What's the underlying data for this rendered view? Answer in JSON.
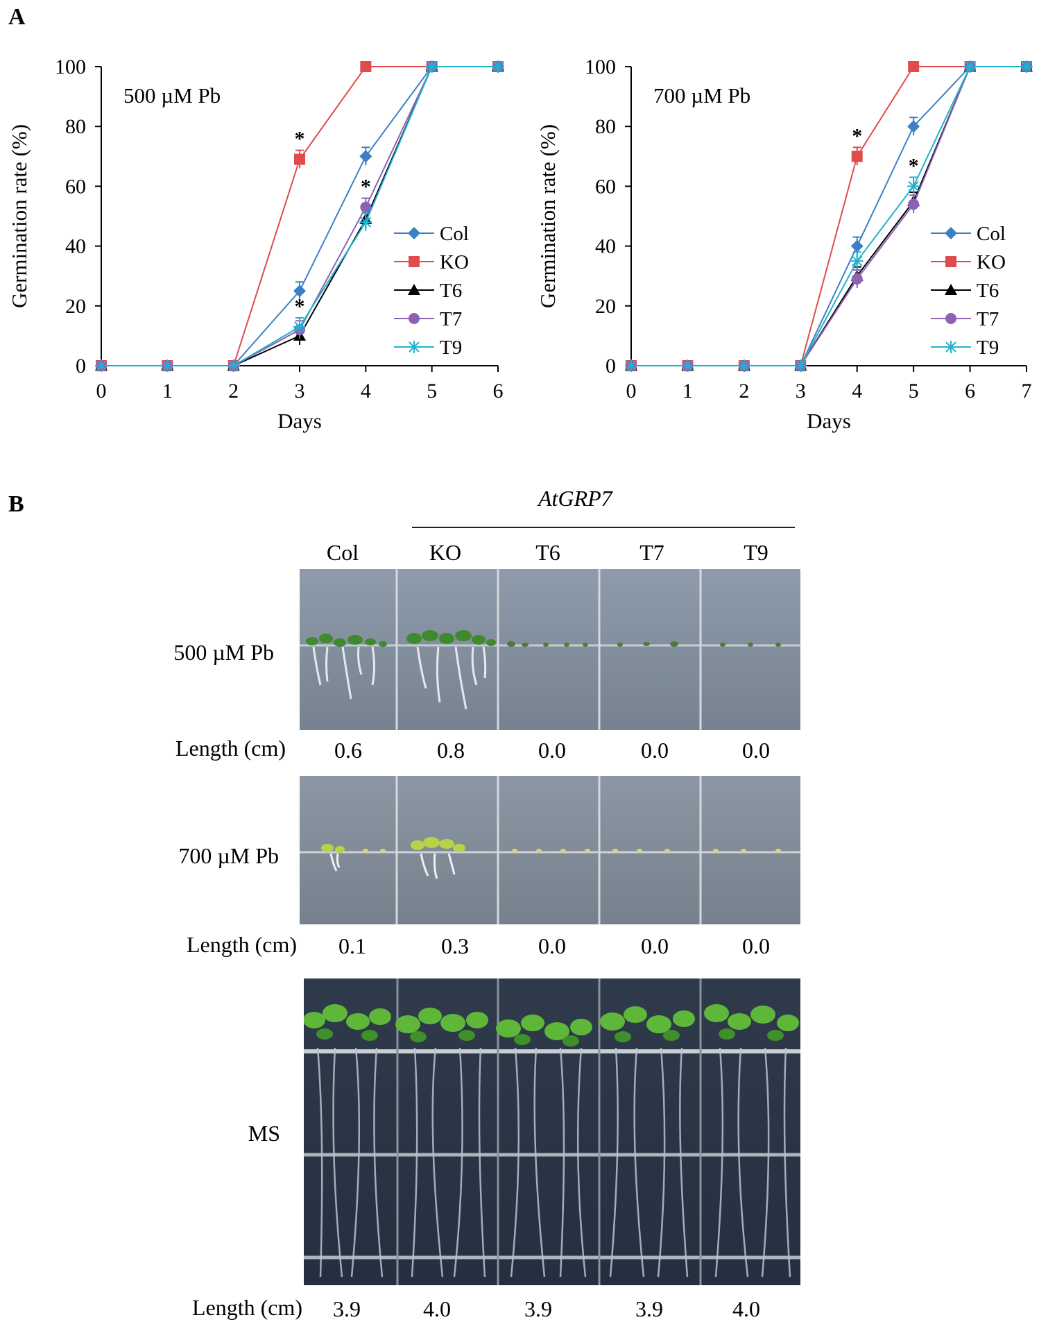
{
  "panelA": {
    "letter": "A"
  },
  "panelB": {
    "letter": "B",
    "gene_label": "AtGRP7",
    "columns": [
      "Col",
      "KO",
      "T6",
      "T7",
      "T9"
    ],
    "rows": [
      {
        "condition": "500 µM Pb",
        "length_label": "Length (cm)",
        "lengths": [
          "0.6",
          "0.8",
          "0.0",
          "0.0",
          "0.0"
        ]
      },
      {
        "condition": "700 µM Pb",
        "length_label": "Length (cm)",
        "lengths": [
          "0.1",
          "0.3",
          "0.0",
          "0.0",
          "0.0"
        ]
      },
      {
        "condition": "MS",
        "length_label": "Length (cm)",
        "lengths": [
          "3.9",
          "4.0",
          "3.9",
          "3.9",
          "4.0"
        ]
      }
    ]
  },
  "colors": {
    "Col": "#3d7fc4",
    "KO": "#e04b4b",
    "T6": "#000000",
    "T7": "#8e62b3",
    "T9": "#1fb2d0"
  },
  "chart_data": [
    {
      "type": "line",
      "annotation": "500 µM Pb",
      "xlabel": "Days",
      "ylabel": "Germination  rate (%)",
      "x": [
        0,
        1,
        2,
        3,
        4,
        5,
        6
      ],
      "xlim": [
        0,
        6
      ],
      "ylim": [
        0,
        100
      ],
      "yticks": [
        0,
        20,
        40,
        60,
        80,
        100
      ],
      "legend_position": "right-middle",
      "series": [
        {
          "name": "Col",
          "marker": "diamond",
          "values": [
            0,
            0,
            0,
            25,
            70,
            100,
            100
          ]
        },
        {
          "name": "KO",
          "marker": "square",
          "values": [
            0,
            0,
            0,
            69,
            100,
            100,
            100
          ]
        },
        {
          "name": "T6",
          "marker": "triangle",
          "values": [
            0,
            0,
            0,
            10,
            49,
            100,
            100
          ]
        },
        {
          "name": "T7",
          "marker": "circle",
          "values": [
            0,
            0,
            0,
            12,
            53,
            100,
            100
          ]
        },
        {
          "name": "T9",
          "marker": "asterisk",
          "values": [
            0,
            0,
            0,
            13,
            48,
            100,
            100
          ]
        }
      ],
      "significance": [
        {
          "x": 3,
          "y": 69,
          "label": "*"
        },
        {
          "x": 3,
          "y": 13,
          "label": "*"
        },
        {
          "x": 4,
          "y": 53,
          "label": "*"
        }
      ]
    },
    {
      "type": "line",
      "annotation": "700 µM Pb",
      "xlabel": "Days",
      "ylabel": "Germination  rate (%)",
      "x": [
        0,
        1,
        2,
        3,
        4,
        5,
        6,
        7
      ],
      "xlim": [
        0,
        7
      ],
      "ylim": [
        0,
        100
      ],
      "yticks": [
        0,
        20,
        40,
        60,
        80,
        100
      ],
      "legend_position": "right-middle",
      "series": [
        {
          "name": "Col",
          "marker": "diamond",
          "values": [
            0,
            0,
            0,
            0,
            40,
            80,
            100,
            100
          ]
        },
        {
          "name": "KO",
          "marker": "square",
          "values": [
            0,
            0,
            0,
            0,
            70,
            100,
            100,
            100
          ]
        },
        {
          "name": "T6",
          "marker": "triangle",
          "values": [
            0,
            0,
            0,
            0,
            30,
            55,
            100,
            100
          ]
        },
        {
          "name": "T7",
          "marker": "circle",
          "values": [
            0,
            0,
            0,
            0,
            29,
            54,
            100,
            100
          ]
        },
        {
          "name": "T9",
          "marker": "asterisk",
          "values": [
            0,
            0,
            0,
            0,
            35,
            60,
            100,
            100
          ]
        }
      ],
      "significance": [
        {
          "x": 4,
          "y": 70,
          "label": "*"
        },
        {
          "x": 5,
          "y": 60,
          "label": "*"
        }
      ]
    }
  ]
}
